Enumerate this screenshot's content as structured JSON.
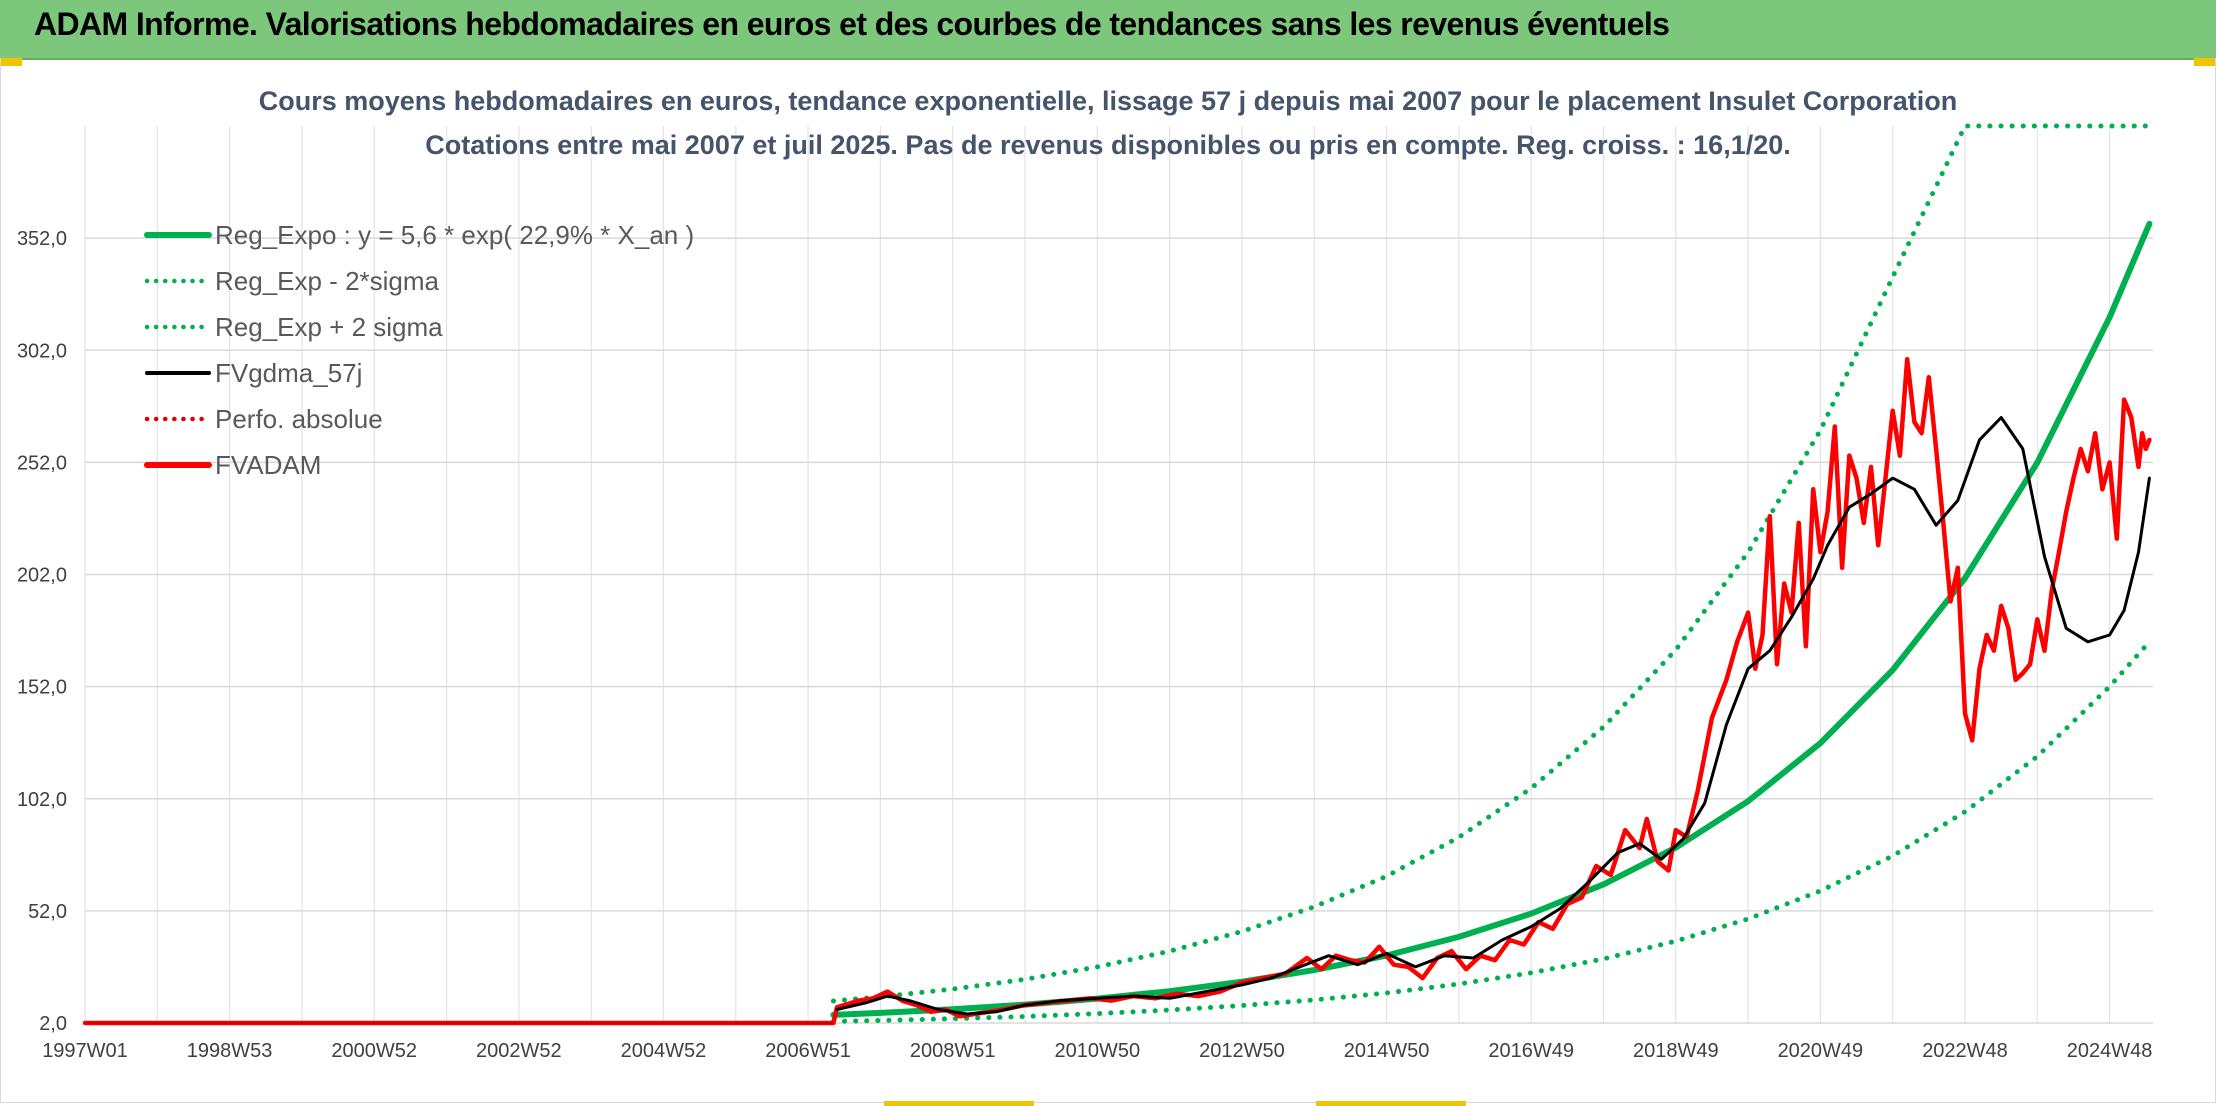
{
  "header": {
    "title": "ADAM Informe. Valorisations hebdomadaires en euros et des courbes de tendances sans les revenus éventuels"
  },
  "chart_data": {
    "type": "line",
    "title": "Cours moyens hebdomadaires en euros, tendance exponentielle, lissage 57 j depuis mai 2007 pour le placement Insulet Corporation",
    "subtitle": "Cotations entre mai 2007 et juil 2025. Pas de revenus disponibles ou pris en compte. Reg. croiss. : 16,1/20.",
    "xlabel": "",
    "ylabel": "",
    "xlim": [
      1997.0,
      2025.6
    ],
    "ylim": [
      2.0,
      402.0
    ],
    "grid": true,
    "legend_position": "top-left",
    "x_tick_labels": [
      "1997W01",
      "1998W53",
      "2000W52",
      "2002W52",
      "2004W52",
      "2006W51",
      "2008W51",
      "2010W50",
      "2012W50",
      "2014W50",
      "2016W49",
      "2018W49",
      "2020W49",
      "2022W48",
      "2024W48"
    ],
    "x_tick_years": [
      1997.0,
      1999.0,
      2001.0,
      2003.0,
      2005.0,
      2007.0,
      2009.0,
      2011.0,
      2013.0,
      2015.0,
      2017.0,
      2019.0,
      2021.0,
      2023.0,
      2025.0
    ],
    "y_ticks": [
      2.0,
      52.0,
      102.0,
      152.0,
      202.0,
      252.0,
      302.0,
      352.0
    ],
    "y_tick_labels": [
      "2,0",
      "52,0",
      "102,0",
      "152,0",
      "202,0",
      "252,0",
      "302,0",
      "352,0"
    ],
    "series": [
      {
        "name": "Reg_Expo : y = 5,6 * exp( 22,9% *  X_an )",
        "color": "#00b050",
        "style": "solid",
        "x": [
          2007.35,
          2008,
          2009,
          2010,
          2011,
          2012,
          2013,
          2014,
          2015,
          2016,
          2017,
          2018,
          2019,
          2020,
          2021,
          2022,
          2023,
          2024,
          2025,
          2025.55
        ],
        "y": [
          5.6,
          6.5,
          8.1,
          10.2,
          12.9,
          16.2,
          20.4,
          25.6,
          32.1,
          40.4,
          50.8,
          63.8,
          80.2,
          100.9,
          126.8,
          159.4,
          200.4,
          251.9,
          316.7,
          358.4
        ]
      },
      {
        "name": "Reg_Exp - 2*sigma",
        "color": "#00b050",
        "style": "dotted",
        "x": [
          2007.35,
          2008,
          2009,
          2010,
          2011,
          2012,
          2013,
          2014,
          2015,
          2016,
          2017,
          2018,
          2019,
          2020,
          2021,
          2022,
          2023,
          2024,
          2025,
          2025.55
        ],
        "y": [
          2.7,
          3.1,
          3.9,
          4.9,
          6.2,
          7.8,
          9.8,
          12.3,
          15.4,
          19.4,
          24.4,
          30.6,
          38.5,
          48.4,
          60.9,
          76.5,
          96.2,
          120.9,
          152.0,
          172.0
        ]
      },
      {
        "name": "Reg_Exp + 2 sigma",
        "color": "#00b050",
        "style": "dotted",
        "x": [
          2007.35,
          2008,
          2009,
          2010,
          2011,
          2012,
          2013,
          2014,
          2015,
          2016,
          2017,
          2018,
          2019,
          2020,
          2021,
          2022,
          2023,
          2024,
          2025,
          2025.55
        ],
        "y": [
          11.8,
          13.7,
          17.1,
          21.5,
          27.0,
          34.0,
          42.8,
          53.8,
          67.4,
          84.8,
          106.7,
          134.0,
          168.4,
          211.9,
          266.3,
          334.7,
          402.0,
          402.0,
          402.0,
          402.0
        ]
      },
      {
        "name": "FVgdma_57j",
        "color": "#000000",
        "style": "solid",
        "x": [
          2007.4,
          2007.8,
          2008.1,
          2008.4,
          2008.8,
          2009.2,
          2009.6,
          2010.0,
          2010.5,
          2011.0,
          2011.5,
          2012.0,
          2012.5,
          2013.0,
          2013.4,
          2013.8,
          2014.2,
          2014.6,
          2015.0,
          2015.4,
          2015.8,
          2016.2,
          2016.6,
          2017.0,
          2017.4,
          2017.8,
          2018.2,
          2018.5,
          2018.8,
          2019.1,
          2019.4,
          2019.7,
          2020.0,
          2020.3,
          2020.6,
          2020.9,
          2021.1,
          2021.4,
          2021.7,
          2022.0,
          2022.3,
          2022.6,
          2022.9,
          2023.2,
          2023.5,
          2023.8,
          2024.1,
          2024.4,
          2024.7,
          2025.0,
          2025.2,
          2025.4,
          2025.55
        ],
        "y": [
          8,
          11,
          14,
          12,
          8,
          6,
          7,
          10,
          12,
          13,
          14,
          13,
          16,
          19,
          22,
          27,
          32,
          28,
          33,
          27,
          32,
          31,
          39,
          45,
          53,
          65,
          78,
          82,
          75,
          84,
          100,
          135,
          160,
          168,
          183,
          200,
          215,
          232,
          238,
          245,
          240,
          224,
          235,
          262,
          272,
          258,
          210,
          178,
          172,
          175,
          186,
          212,
          245
        ]
      },
      {
        "name": "Perfo. absolue",
        "color": "#e00000",
        "style": "dotted",
        "x": [],
        "y": []
      },
      {
        "name": "FVADAM",
        "color": "#ff0000",
        "style": "solid",
        "x": [
          1997.0,
          2007.35,
          2007.4,
          2007.7,
          2007.9,
          2008.1,
          2008.3,
          2008.5,
          2008.7,
          2008.9,
          2009.1,
          2009.3,
          2009.5,
          2009.7,
          2010.0,
          2010.3,
          2010.6,
          2010.9,
          2011.2,
          2011.5,
          2011.8,
          2012.1,
          2012.4,
          2012.7,
          2013.0,
          2013.3,
          2013.6,
          2013.9,
          2014.1,
          2014.3,
          2014.5,
          2014.7,
          2014.9,
          2015.1,
          2015.3,
          2015.5,
          2015.7,
          2015.9,
          2016.1,
          2016.3,
          2016.5,
          2016.7,
          2016.9,
          2017.1,
          2017.3,
          2017.5,
          2017.7,
          2017.9,
          2018.1,
          2018.3,
          2018.5,
          2018.6,
          2018.75,
          2018.9,
          2019.0,
          2019.15,
          2019.3,
          2019.5,
          2019.7,
          2019.85,
          2020.0,
          2020.1,
          2020.2,
          2020.3,
          2020.4,
          2020.5,
          2020.6,
          2020.7,
          2020.8,
          2020.9,
          2021.0,
          2021.1,
          2021.2,
          2021.3,
          2021.4,
          2021.5,
          2021.6,
          2021.7,
          2021.8,
          2021.9,
          2022.0,
          2022.1,
          2022.2,
          2022.3,
          2022.4,
          2022.5,
          2022.6,
          2022.7,
          2022.8,
          2022.9,
          2023.0,
          2023.1,
          2023.2,
          2023.3,
          2023.4,
          2023.5,
          2023.6,
          2023.7,
          2023.8,
          2023.9,
          2024.0,
          2024.1,
          2024.2,
          2024.3,
          2024.4,
          2024.5,
          2024.6,
          2024.7,
          2024.8,
          2024.9,
          2025.0,
          2025.1,
          2025.2,
          2025.3,
          2025.4,
          2025.45,
          2025.5,
          2025.55
        ],
        "y": [
          2.0,
          2.0,
          9,
          12,
          13,
          16,
          12,
          10,
          7,
          8,
          5,
          6,
          7,
          8,
          10,
          11,
          12,
          13,
          12,
          14,
          13,
          15,
          14,
          16,
          20,
          22,
          24,
          31,
          26,
          32,
          30,
          29,
          36,
          28,
          27,
          22,
          31,
          34,
          26,
          32,
          30,
          39,
          37,
          47,
          44,
          55,
          58,
          72,
          68,
          88,
          80,
          93,
          74,
          70,
          88,
          85,
          105,
          138,
          155,
          172,
          185,
          160,
          175,
          228,
          162,
          198,
          185,
          225,
          170,
          240,
          212,
          230,
          268,
          205,
          255,
          245,
          225,
          250,
          215,
          245,
          275,
          255,
          298,
          270,
          265,
          290,
          258,
          225,
          190,
          205,
          140,
          128,
          160,
          175,
          168,
          188,
          178,
          155,
          158,
          162,
          182,
          168,
          195,
          212,
          230,
          245,
          258,
          248,
          265,
          240,
          252,
          218,
          280,
          272,
          250,
          265,
          258,
          262
        ]
      }
    ]
  }
}
